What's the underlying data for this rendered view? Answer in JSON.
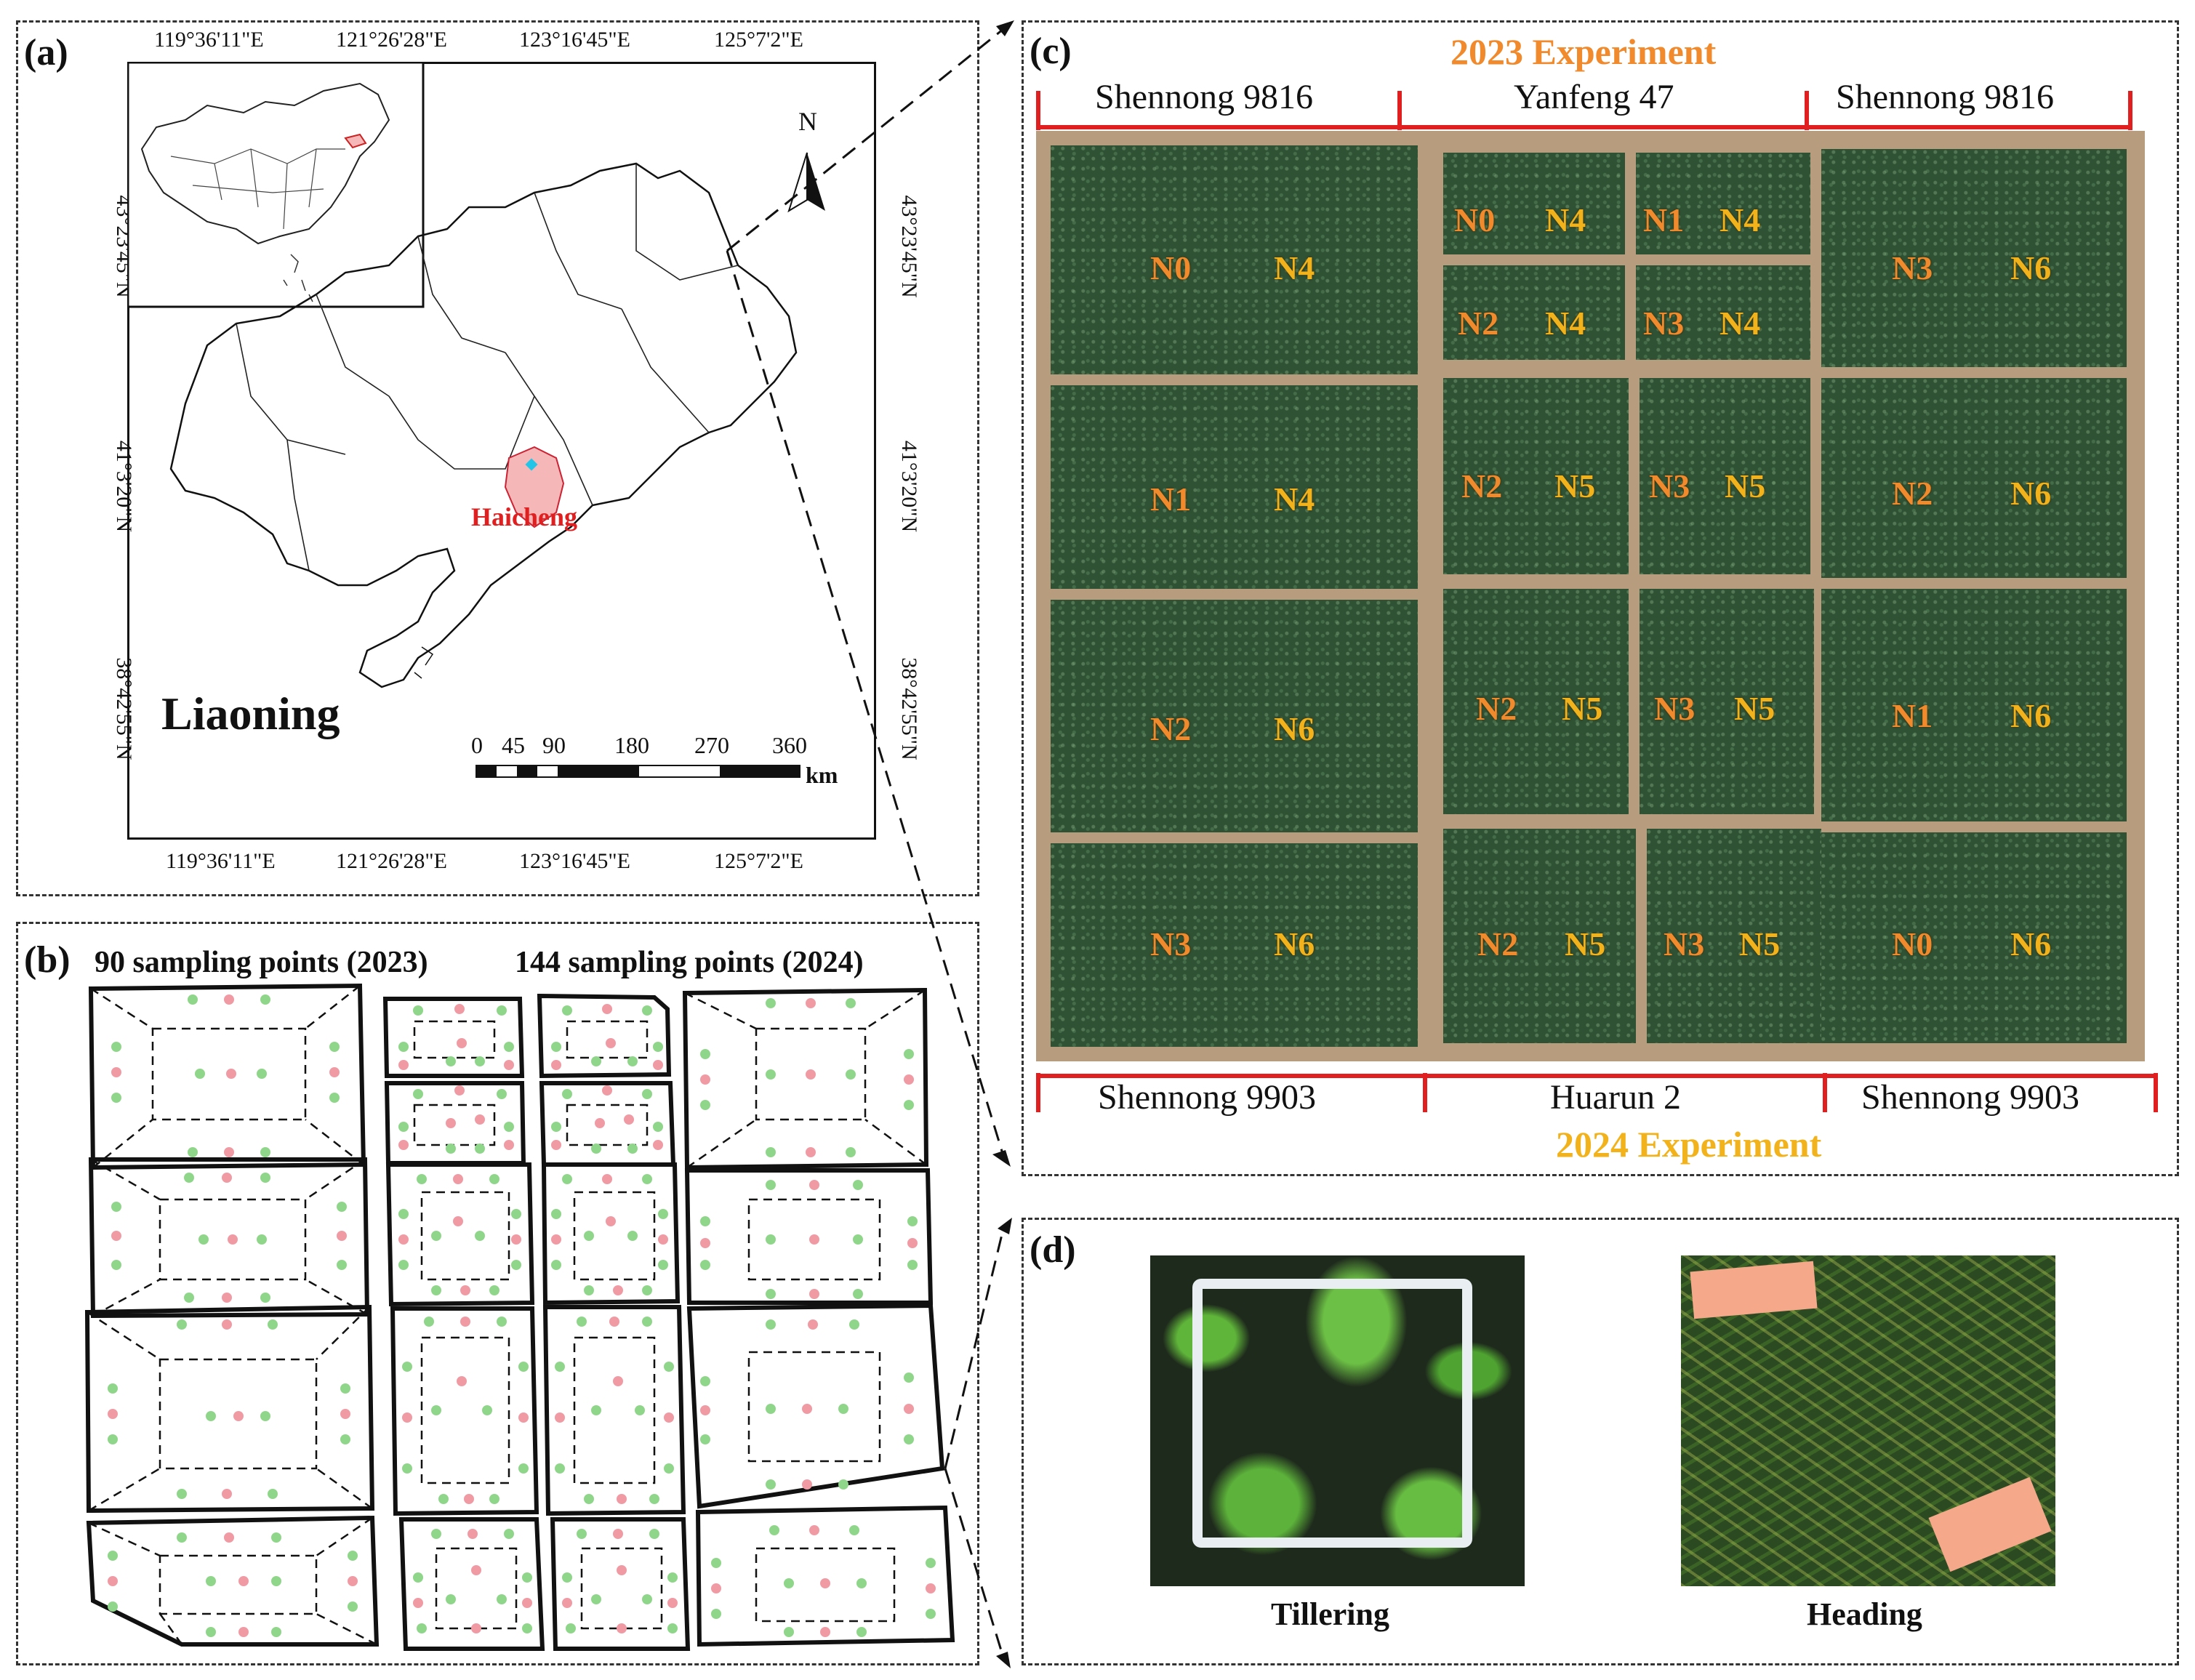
{
  "panels": {
    "a": {
      "label": "(a)",
      "top_ticks": [
        "119°36'11\"E",
        "121°26'28\"E",
        "123°16'45\"E",
        "125°7'2\"E"
      ],
      "bottom_ticks": [
        "119°36'11\"E",
        "121°26'28\"E",
        "123°16'45\"E",
        "125°7'2\"E"
      ],
      "left_ticks": [
        "43°23'45\"N",
        "41°3'20\"N",
        "38°42'55\"N"
      ],
      "right_ticks": [
        "43°23'45\"N",
        "41°3'20\"N",
        "38°42'55\"N"
      ],
      "north_label": "N",
      "province_label": "Liaoning",
      "city_label": "Haicheng",
      "scale_ticks": [
        "0",
        "45",
        "90",
        "180",
        "270",
        "360"
      ],
      "scale_unit": "km"
    },
    "b": {
      "label": "(b)",
      "caption_2023": "90 sampling points (2023)",
      "caption_2024": "144 sampling points (2024)"
    },
    "c": {
      "label": "(c)",
      "experiment_2023": "2023 Experiment",
      "experiment_2024": "2024 Experiment",
      "top_varieties": [
        "Shennong 9816",
        "Yanfeng 47",
        "Shennong 9816"
      ],
      "bottom_varieties": [
        "Shennong 9903",
        "Huarun 2",
        "Shennong 9903"
      ],
      "left_plots": [
        {
          "a": "N0",
          "b": "N4"
        },
        {
          "a": "N1",
          "b": "N4"
        },
        {
          "a": "N2",
          "b": "N6"
        },
        {
          "a": "N3",
          "b": "N6"
        }
      ],
      "middle_plots": [
        {
          "a": "N0",
          "b": "N4",
          "c": "N1",
          "d": "N4"
        },
        {
          "a": "N2",
          "b": "N4",
          "c": "N3",
          "d": "N4"
        },
        {
          "a": "N2",
          "b": "N5",
          "c": "N3",
          "d": "N5"
        },
        {
          "a": "N2",
          "b": "N5",
          "c": "N3",
          "d": "N5"
        },
        {
          "a": "N2",
          "b": "N5",
          "c": "N3",
          "d": "N5"
        }
      ],
      "right_plots": [
        {
          "a": "N3",
          "b": "N6"
        },
        {
          "a": "N2",
          "b": "N6"
        },
        {
          "a": "N1",
          "b": "N6"
        },
        {
          "a": "N0",
          "b": "N6"
        }
      ]
    },
    "d": {
      "label": "(d)",
      "photo_left_caption": "Tillering",
      "photo_right_caption": "Heading"
    }
  },
  "colors": {
    "orange_2023": "#f08a2c",
    "yellow_2024": "#f2b21b",
    "red_bracket": "#e02020",
    "city_fill": "#f5b7b7",
    "dot_green": "#8fd68a",
    "dot_red": "#f09aa4"
  }
}
